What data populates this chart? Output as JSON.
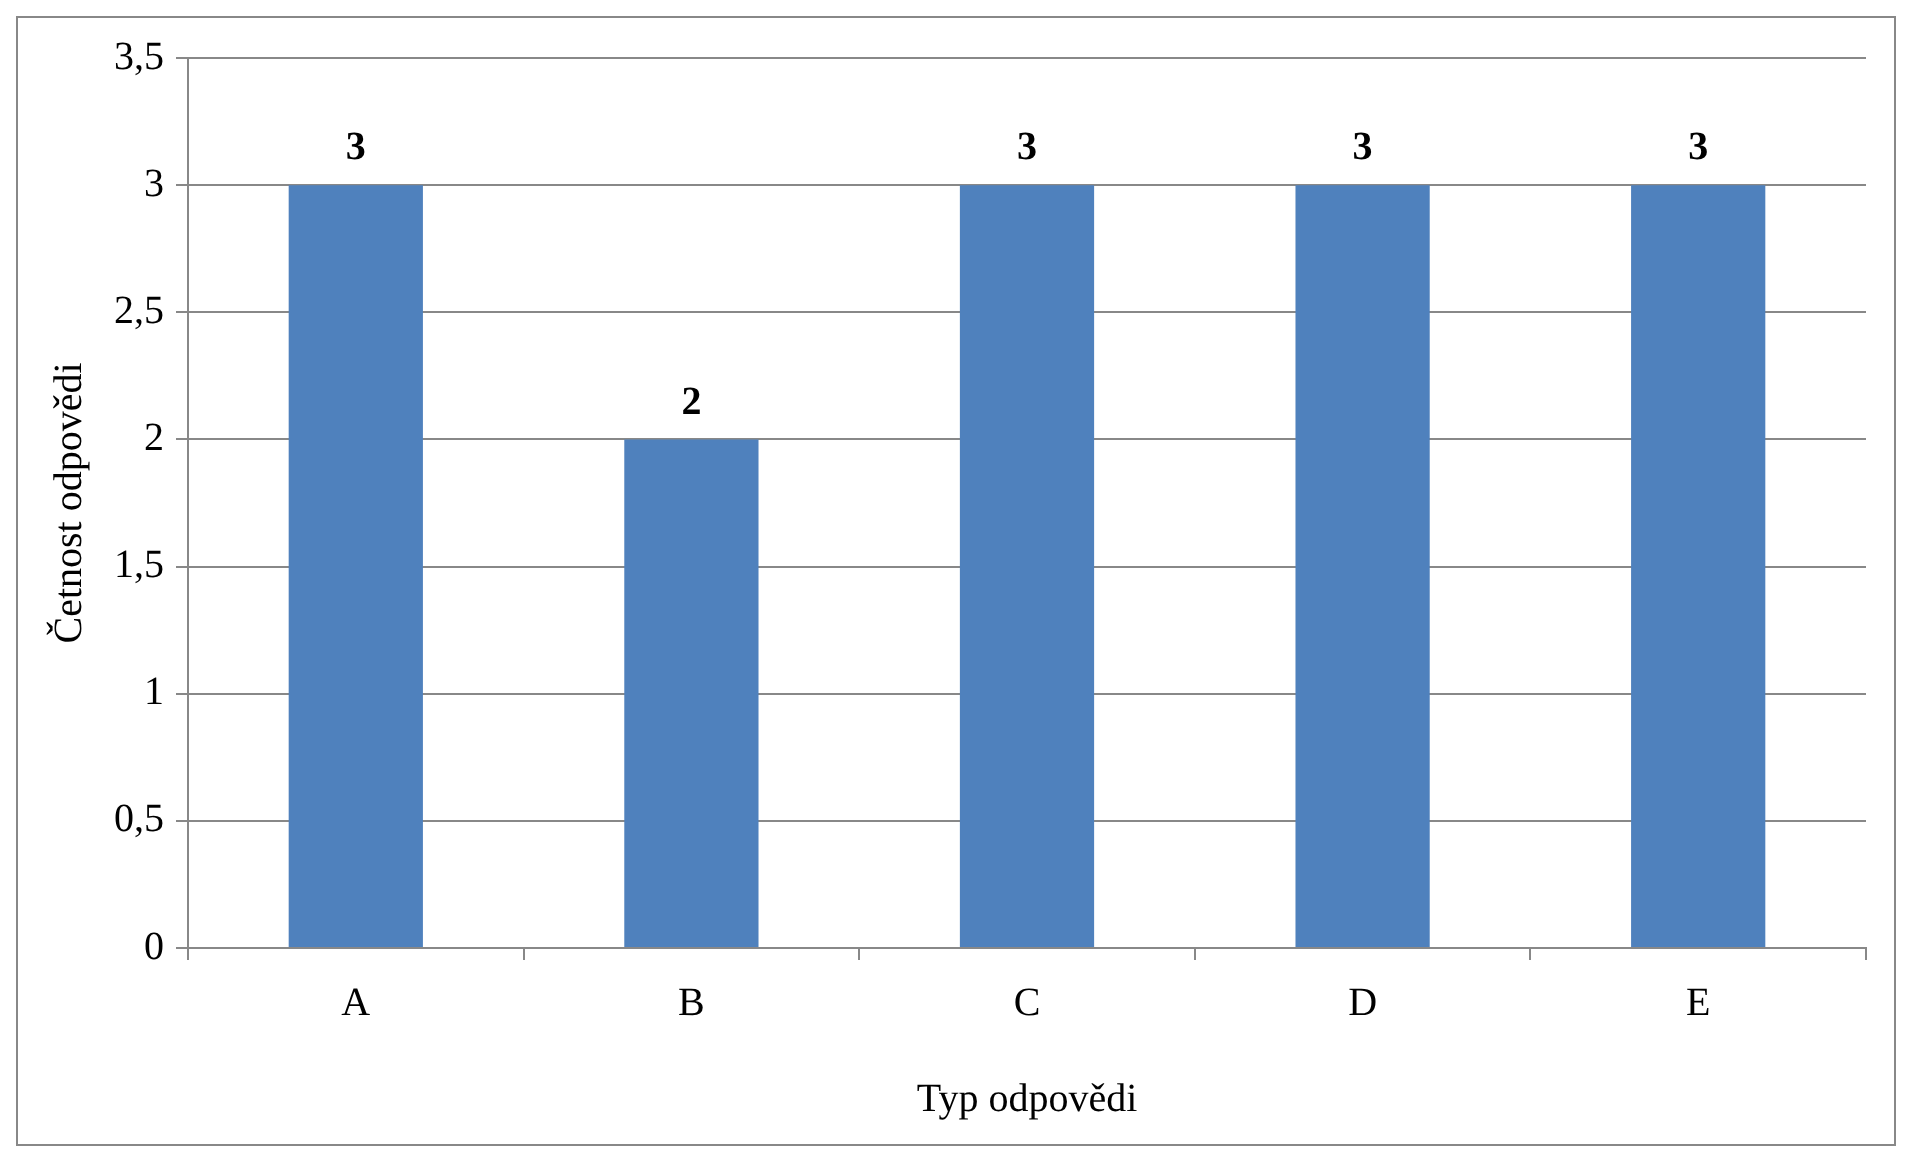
{
  "chart_data": {
    "type": "bar",
    "xlabel": "Typ odpovědi",
    "ylabel": "Četnost odpovědi",
    "categories": [
      "A",
      "B",
      "C",
      "D",
      "E"
    ],
    "values": [
      3,
      2,
      3,
      3,
      3
    ],
    "color": "#4f81bd",
    "ylim": [
      0,
      3.5
    ],
    "yticks": [
      0,
      {
        "value": 0.5,
        "label": "0,5"
      },
      1,
      {
        "value": 1.5,
        "label": "1,5"
      },
      2,
      {
        "value": 2.5,
        "label": "2,5"
      },
      3,
      {
        "value": 3.5,
        "label": "3,5"
      }
    ],
    "grid": "y",
    "data_labels": true,
    "legend": false
  }
}
